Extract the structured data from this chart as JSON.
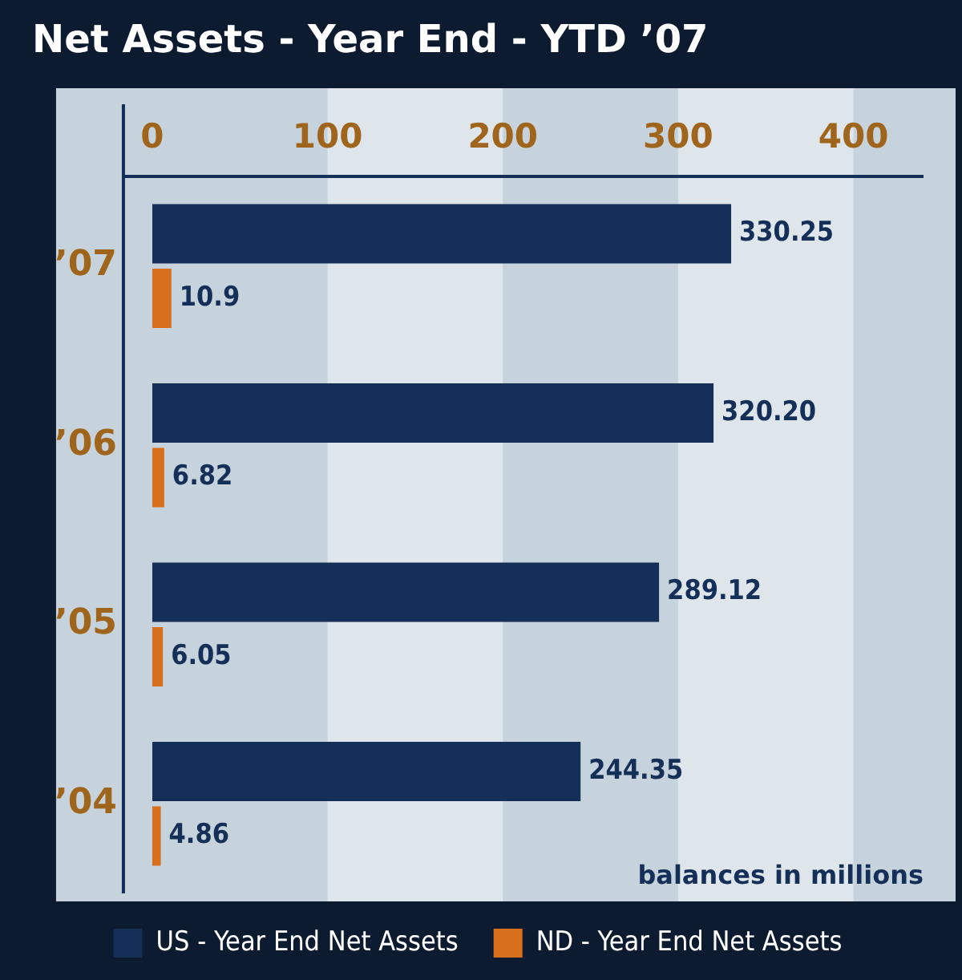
{
  "chart_data": {
    "type": "bar",
    "orientation": "horizontal",
    "title": "Net Assets - Year End - YTD ’07",
    "categories": [
      "’07",
      "’06",
      "’05",
      "’04"
    ],
    "series": [
      {
        "name": "US - Year End Net Assets",
        "color": "#142f58",
        "values": [
          330.25,
          320.2,
          289.12,
          244.35
        ],
        "value_labels": [
          "330.25",
          "320.20",
          "289.12",
          "244.35"
        ]
      },
      {
        "name": "ND - Year End Net Assets",
        "color": "#d86f1c",
        "values": [
          10.9,
          6.82,
          6.05,
          4.86
        ],
        "value_labels": [
          "10.9",
          "6.82",
          "6.05",
          "4.86"
        ]
      }
    ],
    "xlim": [
      0,
      440
    ],
    "xticks": [
      0,
      100,
      200,
      300,
      400
    ],
    "legend": "bottom",
    "annotations": [
      "balances in millions"
    ]
  }
}
